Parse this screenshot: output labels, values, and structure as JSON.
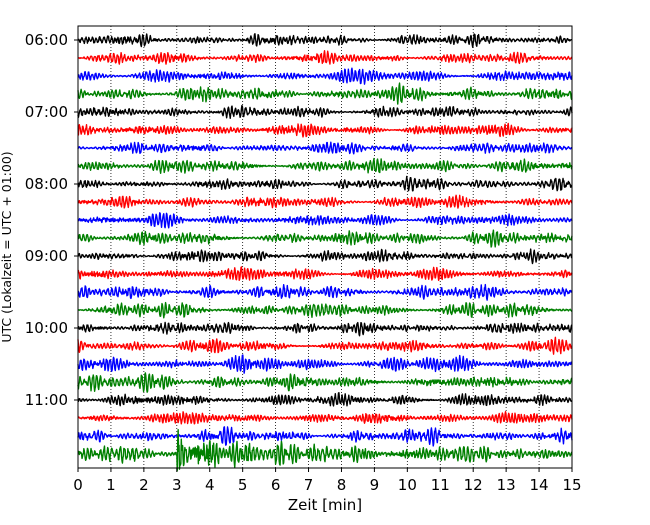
{
  "chart_data": {
    "type": "line",
    "title": "",
    "xlabel": "Zeit  [min]",
    "ylabel": "UTC (Lokalzeit = UTC + 01:00)",
    "xlim": [
      0,
      15
    ],
    "x_ticks": [
      "0",
      "1",
      "2",
      "3",
      "4",
      "5",
      "6",
      "7",
      "8",
      "9",
      "10",
      "11",
      "12",
      "13",
      "14",
      "15"
    ],
    "y_ticks": [
      "06:00",
      "07:00",
      "08:00",
      "09:00",
      "10:00",
      "11:00"
    ],
    "grid": "vertical dotted",
    "trace_color_cycle": [
      "#000000",
      "#ff0000",
      "#0000ff",
      "#008000"
    ],
    "traces": [
      {
        "start": "06:00",
        "amplitude": 0.22
      },
      {
        "start": "06:15",
        "amplitude": 0.22
      },
      {
        "start": "06:30",
        "amplitude": 0.24
      },
      {
        "start": "06:45",
        "amplitude": 0.28
      },
      {
        "start": "07:00",
        "amplitude": 0.22
      },
      {
        "start": "07:15",
        "amplitude": 0.24
      },
      {
        "start": "07:30",
        "amplitude": 0.22
      },
      {
        "start": "07:45",
        "amplitude": 0.26
      },
      {
        "start": "08:00",
        "amplitude": 0.22
      },
      {
        "start": "08:15",
        "amplitude": 0.24
      },
      {
        "start": "08:30",
        "amplitude": 0.24
      },
      {
        "start": "08:45",
        "amplitude": 0.26
      },
      {
        "start": "09:00",
        "amplitude": 0.22
      },
      {
        "start": "09:15",
        "amplitude": 0.24
      },
      {
        "start": "09:30",
        "amplitude": 0.26
      },
      {
        "start": "09:45",
        "amplitude": 0.26
      },
      {
        "start": "10:00",
        "amplitude": 0.22
      },
      {
        "start": "10:15",
        "amplitude": 0.24
      },
      {
        "start": "10:30",
        "amplitude": 0.26
      },
      {
        "start": "10:45",
        "amplitude": 0.28
      },
      {
        "start": "11:00",
        "amplitude": 0.24
      },
      {
        "start": "11:15",
        "amplitude": 0.24
      },
      {
        "start": "11:30",
        "amplitude": 0.26
      },
      {
        "start": "11:45",
        "amplitude": 0.32,
        "event": {
          "onset_min": 3.0,
          "peak_amplitude": 1.4
        }
      }
    ]
  }
}
